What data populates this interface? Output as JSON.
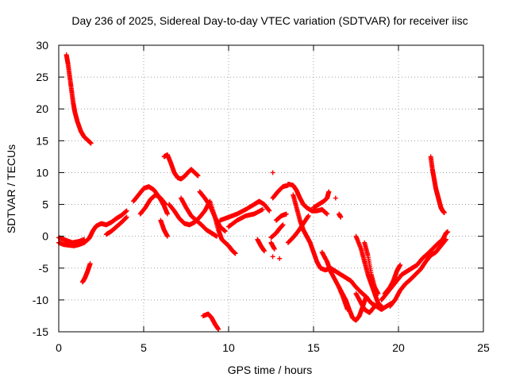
{
  "chart_data": {
    "type": "scatter",
    "title": "Day 236 of 2025, Sidereal Day-to-day VTEC variation (SDTVAR) for receiver iisc",
    "xlabel": "GPS time / hours",
    "ylabel": "SDTVAR / TECUs",
    "xlim": [
      0,
      25
    ],
    "ylim": [
      -15,
      30
    ],
    "xticks": [
      0,
      5,
      10,
      15,
      20,
      25
    ],
    "yticks": [
      -15,
      -10,
      -5,
      0,
      5,
      10,
      15,
      20,
      25,
      30
    ],
    "grid": true,
    "marker": "+",
    "series": [
      {
        "name": "SDTVAR",
        "color": "#ff0000",
        "segments": [
          [
            [
              0.45,
              28.5
            ],
            [
              0.55,
              27
            ],
            [
              0.65,
              25
            ],
            [
              0.75,
              23
            ],
            [
              0.85,
              21
            ],
            [
              0.95,
              19.5
            ],
            [
              1.1,
              18
            ],
            [
              1.3,
              16.5
            ],
            [
              1.5,
              15.6
            ],
            [
              1.75,
              15
            ],
            [
              1.9,
              14.6
            ]
          ],
          [
            [
              1.4,
              -7.2
            ],
            [
              1.55,
              -6.5
            ],
            [
              1.7,
              -5.5
            ],
            [
              1.85,
              -4.3
            ]
          ],
          [
            [
              0.0,
              -1.0
            ],
            [
              0.3,
              -1.3
            ],
            [
              0.6,
              -1.4
            ],
            [
              0.9,
              -1.5
            ],
            [
              1.2,
              -1.3
            ],
            [
              1.5,
              -1.0
            ],
            [
              1.8,
              -0.3
            ],
            [
              2.0,
              0.8
            ],
            [
              2.2,
              1.6
            ],
            [
              2.5,
              2.0
            ],
            [
              2.8,
              1.8
            ],
            [
              3.1,
              2.2
            ],
            [
              3.4,
              2.8
            ],
            [
              3.7,
              3.3
            ],
            [
              4.0,
              4.0
            ]
          ],
          [
            [
              0.0,
              -0.2
            ],
            [
              0.4,
              -0.6
            ],
            [
              0.8,
              -1.0
            ],
            [
              1.2,
              -0.8
            ],
            [
              1.5,
              -0.5
            ]
          ],
          [
            [
              2.8,
              0.3
            ],
            [
              3.1,
              0.8
            ],
            [
              3.4,
              1.5
            ],
            [
              3.7,
              2.2
            ],
            [
              4.0,
              3.0
            ]
          ],
          [
            [
              4.4,
              5.5
            ],
            [
              4.7,
              6.5
            ],
            [
              5.0,
              7.5
            ],
            [
              5.3,
              7.8
            ],
            [
              5.6,
              7.3
            ],
            [
              5.9,
              6.2
            ],
            [
              6.2,
              4.8
            ],
            [
              6.4,
              3.5
            ]
          ],
          [
            [
              4.8,
              3.5
            ],
            [
              5.1,
              4.5
            ],
            [
              5.4,
              5.8
            ],
            [
              5.7,
              6.5
            ],
            [
              6.0,
              6.0
            ],
            [
              6.3,
              5.0
            ]
          ],
          [
            [
              6.2,
              12.5
            ],
            [
              6.4,
              12.8
            ],
            [
              6.6,
              11.5
            ],
            [
              6.8,
              10.0
            ],
            [
              7.0,
              9.2
            ],
            [
              7.2,
              9.0
            ],
            [
              7.4,
              9.4
            ],
            [
              7.6,
              10.0
            ],
            [
              7.8,
              10.5
            ],
            [
              8.0,
              10.0
            ],
            [
              8.2,
              9.5
            ]
          ],
          [
            [
              6.0,
              2.5
            ],
            [
              6.2,
              1.0
            ],
            [
              6.4,
              0.0
            ]
          ],
          [
            [
              6.5,
              5.0
            ],
            [
              6.8,
              4.0
            ],
            [
              7.1,
              2.8
            ],
            [
              7.4,
              2.0
            ],
            [
              7.7,
              1.8
            ],
            [
              8.0,
              2.2
            ],
            [
              8.3,
              3.0
            ],
            [
              8.6,
              4.0
            ],
            [
              8.9,
              5.5
            ],
            [
              9.2,
              3.0
            ],
            [
              9.4,
              1.0
            ],
            [
              9.6,
              -0.5
            ],
            [
              9.8,
              -1.0
            ],
            [
              10.0,
              -1.5
            ],
            [
              10.2,
              -2.2
            ],
            [
              10.4,
              -2.7
            ]
          ],
          [
            [
              7.2,
              6.0
            ],
            [
              7.5,
              4.5
            ],
            [
              7.8,
              3.2
            ],
            [
              8.1,
              2.5
            ],
            [
              8.4,
              1.8
            ],
            [
              8.7,
              1.0
            ],
            [
              9.0,
              0.5
            ],
            [
              9.3,
              0.0
            ]
          ],
          [
            [
              8.3,
              7.0
            ],
            [
              8.6,
              6.0
            ],
            [
              8.9,
              4.8
            ],
            [
              9.2,
              3.0
            ],
            [
              9.5,
              1.5
            ],
            [
              9.8,
              0.8
            ]
          ],
          [
            [
              8.5,
              -12.5
            ],
            [
              8.8,
              -12.2
            ],
            [
              9.0,
              -12.8
            ],
            [
              9.2,
              -13.8
            ],
            [
              9.4,
              -14.6
            ]
          ],
          [
            [
              9.5,
              2.5
            ],
            [
              10.0,
              3.0
            ],
            [
              10.5,
              3.5
            ],
            [
              11.0,
              4.2
            ],
            [
              11.5,
              5.0
            ],
            [
              11.8,
              5.5
            ],
            [
              12.1,
              5.0
            ],
            [
              12.4,
              4.0
            ]
          ],
          [
            [
              10.0,
              1.5
            ],
            [
              10.5,
              2.5
            ],
            [
              11.0,
              3.2
            ],
            [
              11.5,
              3.5
            ],
            [
              12.0,
              4.2
            ]
          ],
          [
            [
              11.7,
              -0.5
            ],
            [
              11.9,
              -1.5
            ],
            [
              12.1,
              -2.3
            ]
          ],
          [
            [
              12.5,
              -1.0
            ],
            [
              12.7,
              -2.0
            ]
          ],
          [
            [
              12.6,
              -3.2
            ]
          ],
          [
            [
              13.0,
              -3.5
            ]
          ],
          [
            [
              12.5,
              -0.2
            ],
            [
              12.8,
              0.5
            ],
            [
              13.0,
              1.2
            ],
            [
              13.2,
              1.8
            ]
          ],
          [
            [
              12.6,
              6.0
            ],
            [
              12.9,
              7.0
            ],
            [
              13.2,
              7.8
            ],
            [
              13.5,
              8.0
            ]
          ],
          [
            [
              12.6,
              10.0
            ]
          ],
          [
            [
              12.8,
              2.5
            ],
            [
              13.1,
              3.2
            ],
            [
              13.4,
              3.5
            ]
          ],
          [
            [
              13.5,
              8.2
            ],
            [
              13.8,
              8.0
            ],
            [
              14.0,
              7.2
            ],
            [
              14.2,
              6.0
            ],
            [
              14.4,
              5.0
            ],
            [
              14.6,
              4.5
            ],
            [
              14.9,
              4.0
            ],
            [
              15.2,
              4.0
            ],
            [
              15.5,
              4.2
            ],
            [
              15.8,
              3.5
            ]
          ],
          [
            [
              13.5,
              -1.0
            ],
            [
              13.8,
              -0.2
            ],
            [
              14.1,
              0.8
            ],
            [
              14.4,
              2.0
            ],
            [
              14.7,
              3.2
            ]
          ],
          [
            [
              13.8,
              6.5
            ],
            [
              14.0,
              4.5
            ],
            [
              14.2,
              2.5
            ],
            [
              14.4,
              1.0
            ],
            [
              14.6,
              0.0
            ],
            [
              14.8,
              -1.0
            ],
            [
              15.0,
              -2.5
            ],
            [
              15.2,
              -4.0
            ],
            [
              15.4,
              -5.0
            ],
            [
              15.7,
              -5.3
            ],
            [
              16.0,
              -5.0
            ],
            [
              16.3,
              -5.5
            ],
            [
              16.6,
              -6.0
            ],
            [
              16.9,
              -6.5
            ],
            [
              17.2,
              -7.0
            ],
            [
              17.5,
              -8.0
            ],
            [
              17.8,
              -8.8
            ],
            [
              18.1,
              -9.5
            ],
            [
              18.4,
              -10.5
            ],
            [
              18.7,
              -11.0
            ],
            [
              19.0,
              -11.5
            ],
            [
              19.3,
              -11.0
            ],
            [
              19.6,
              -10.5
            ]
          ],
          [
            [
              15.0,
              4.5
            ],
            [
              15.3,
              5.0
            ],
            [
              15.6,
              5.5
            ],
            [
              15.8,
              6.0
            ],
            [
              15.9,
              7.0
            ]
          ],
          [
            [
              16.3,
              6.0
            ]
          ],
          [
            [
              16.5,
              3.5
            ],
            [
              16.6,
              3.0
            ]
          ],
          [
            [
              15.5,
              -2.5
            ],
            [
              15.8,
              -4.0
            ],
            [
              16.0,
              -5.5
            ],
            [
              16.3,
              -7.0
            ],
            [
              16.6,
              -8.5
            ],
            [
              16.9,
              -10.0
            ],
            [
              17.1,
              -11.5
            ],
            [
              17.3,
              -12.8
            ],
            [
              17.5,
              -13.2
            ],
            [
              17.7,
              -12.5
            ],
            [
              17.9,
              -11.0
            ],
            [
              18.1,
              -9.5
            ]
          ],
          [
            [
              16.5,
              -8.0
            ],
            [
              16.8,
              -10.0
            ],
            [
              17.0,
              -11.5
            ]
          ],
          [
            [
              17.5,
              0.0
            ],
            [
              17.8,
              -2.0
            ],
            [
              18.0,
              -4.0
            ],
            [
              18.2,
              -6.0
            ],
            [
              18.4,
              -7.5
            ],
            [
              18.6,
              -9.0
            ],
            [
              18.8,
              -10.5
            ],
            [
              19.0,
              -11.0
            ]
          ],
          [
            [
              17.5,
              -9.0
            ],
            [
              17.8,
              -10.5
            ],
            [
              18.0,
              -11.5
            ],
            [
              18.3,
              -12.0
            ],
            [
              18.6,
              -11.0
            ]
          ],
          [
            [
              18.0,
              -1.0
            ],
            [
              18.2,
              -3.0
            ],
            [
              18.4,
              -6.0
            ],
            [
              18.6,
              -8.0
            ],
            [
              18.8,
              -9.0
            ]
          ],
          [
            [
              19.0,
              -10.0
            ],
            [
              19.3,
              -9.0
            ],
            [
              19.6,
              -8.0
            ],
            [
              19.9,
              -7.0
            ],
            [
              20.2,
              -6.0
            ],
            [
              20.5,
              -5.5
            ],
            [
              20.8,
              -5.0
            ],
            [
              21.1,
              -4.5
            ],
            [
              21.4,
              -3.5
            ],
            [
              21.7,
              -2.8
            ],
            [
              22.0,
              -2.0
            ],
            [
              22.3,
              -1.2
            ],
            [
              22.6,
              -0.5
            ],
            [
              22.8,
              0.5
            ],
            [
              22.9,
              0.7
            ]
          ],
          [
            [
              19.5,
              -11.0
            ],
            [
              19.8,
              -10.0
            ],
            [
              20.1,
              -8.5
            ],
            [
              20.4,
              -7.5
            ],
            [
              20.7,
              -6.8
            ],
            [
              21.0,
              -6.0
            ],
            [
              21.3,
              -5.2
            ],
            [
              21.6,
              -4.0
            ],
            [
              21.9,
              -3.0
            ],
            [
              22.2,
              -2.5
            ],
            [
              22.5,
              -1.5
            ],
            [
              22.8,
              -0.5
            ]
          ],
          [
            [
              19.2,
              -9.0
            ],
            [
              19.5,
              -8.0
            ],
            [
              19.7,
              -7.0
            ],
            [
              19.9,
              -5.5
            ],
            [
              20.1,
              -4.5
            ]
          ],
          [
            [
              21.9,
              12.5
            ],
            [
              22.0,
              10.5
            ],
            [
              22.1,
              9.0
            ],
            [
              22.2,
              7.5
            ],
            [
              22.3,
              6.5
            ],
            [
              22.4,
              5.5
            ],
            [
              22.5,
              4.5
            ],
            [
              22.6,
              4.0
            ],
            [
              22.7,
              3.7
            ]
          ]
        ]
      }
    ]
  }
}
